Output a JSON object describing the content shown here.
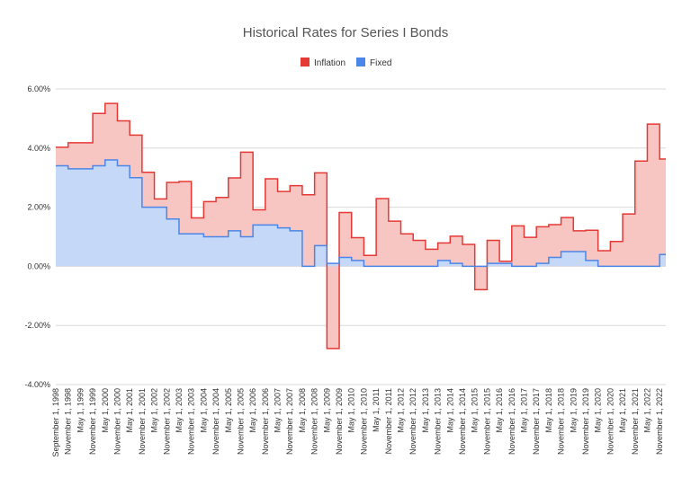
{
  "chart_data": {
    "type": "area",
    "title": "Historical Rates for Series I Bonds",
    "xlabel": "",
    "ylabel": "",
    "ylim": [
      -4,
      6
    ],
    "y_ticks": [
      6,
      4,
      2,
      0,
      -2,
      -4
    ],
    "y_tick_labels": [
      "6.00%",
      "4.00%",
      "2.00%",
      "0.00%",
      "-2.00%",
      "-4.00%"
    ],
    "grid": true,
    "legend": {
      "placement": "top",
      "entries": [
        "Inflation",
        "Fixed"
      ]
    },
    "x": [
      "September 1, 1998",
      "November 1, 1998",
      "May 1, 1999",
      "November 1, 1999",
      "May 1, 2000",
      "November 1, 2000",
      "May 1, 2001",
      "November 1, 2001",
      "May 1, 2002",
      "November 1, 2002",
      "May 1, 2003",
      "November 1, 2003",
      "May 1, 2004",
      "November 1, 2004",
      "May 1, 2005",
      "November 1, 2005",
      "May 1, 2006",
      "November 1, 2006",
      "May 1, 2007",
      "November 1, 2007",
      "May 1, 2008",
      "November 1, 2008",
      "May 1, 2009",
      "November 1, 2009",
      "May 1, 2010",
      "November 1, 2010",
      "May 1, 2011",
      "November 1, 2011",
      "May 1, 2012",
      "November 1, 2012",
      "May 1, 2013",
      "November 1, 2013",
      "May 1, 2014",
      "November 1, 2014",
      "May 1, 2015",
      "November 1, 2015",
      "May 1, 2016",
      "November 1, 2016",
      "May 1, 2017",
      "November 1, 2017",
      "May 1, 2018",
      "November 1, 2018",
      "May 1, 2019",
      "November 1, 2019",
      "May 1, 2020",
      "November 1, 2020",
      "May 1, 2021",
      "November 1, 2021",
      "May 1, 2022",
      "November 1, 2022"
    ],
    "series": [
      {
        "name": "Inflation",
        "color": "#e53935",
        "fill": "#f7c5c2",
        "values": [
          4.03,
          4.18,
          4.18,
          5.17,
          5.51,
          4.92,
          4.44,
          3.18,
          2.28,
          2.84,
          2.87,
          1.64,
          2.19,
          2.33,
          2.99,
          3.86,
          1.91,
          2.96,
          2.53,
          2.73,
          2.42,
          3.16,
          -2.78,
          1.82,
          0.97,
          0.37,
          2.29,
          1.53,
          1.1,
          0.88,
          0.58,
          0.79,
          1.02,
          0.74,
          -0.79,
          0.88,
          0.17,
          1.37,
          0.98,
          1.34,
          1.41,
          1.65,
          1.2,
          1.22,
          0.53,
          0.84,
          1.77,
          3.56,
          4.81,
          3.63
        ]
      },
      {
        "name": "Fixed",
        "color": "#4a86e8",
        "fill": "#c6d8f7",
        "values": [
          3.4,
          3.3,
          3.3,
          3.4,
          3.6,
          3.4,
          3.0,
          2.0,
          2.0,
          1.6,
          1.1,
          1.1,
          1.0,
          1.0,
          1.2,
          1.0,
          1.4,
          1.4,
          1.3,
          1.2,
          0.0,
          0.7,
          0.1,
          0.3,
          0.2,
          0.0,
          0.0,
          0.0,
          0.0,
          0.0,
          0.0,
          0.2,
          0.1,
          0.0,
          0.0,
          0.1,
          0.1,
          0.0,
          0.0,
          0.1,
          0.3,
          0.5,
          0.5,
          0.2,
          0.0,
          0.0,
          0.0,
          0.0,
          0.0,
          0.4
        ]
      }
    ]
  }
}
